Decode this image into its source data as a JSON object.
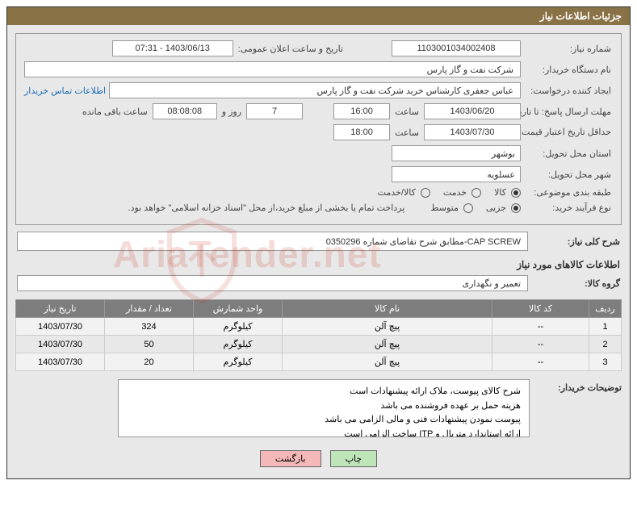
{
  "header": {
    "title": "جزئیات اطلاعات نیاز"
  },
  "labels": {
    "need_no": "شماره نیاز:",
    "announce_dt": "تاریخ و ساعت اعلان عمومی:",
    "buyer_org": "نام دستگاه خریدار:",
    "requester": "ایجاد کننده درخواست:",
    "contact_link": "اطلاعات تماس خریدار",
    "reply_deadline": "مهلت ارسال پاسخ: تا تاریخ:",
    "hour": "ساعت",
    "days_and": "روز و",
    "remaining": "ساعت باقی مانده",
    "price_valid": "حداقل تاریخ اعتبار قیمت: تا تاریخ:",
    "delivery_province": "استان محل تحویل:",
    "delivery_city": "شهر محل تحویل:",
    "category": "طبقه بندی موضوعی:",
    "purchase_type": "نوع فرآیند خرید:",
    "payment_note": "پرداخت تمام یا بخشی از مبلغ خرید،از محل \"اسناد خزانه اسلامی\" خواهد بود.",
    "overall_desc": "شرح کلی نیاز:",
    "items_title": "اطلاعات کالاهای مورد نیاز",
    "item_group": "گروه کالا:",
    "buyer_notes": "توضیحات خریدار:"
  },
  "fields": {
    "need_no": "1103001034002408",
    "announce_dt": "1403/06/13 - 07:31",
    "buyer_org": "شرکت نفت و گاز پارس",
    "requester": "عباس  جعفری کارشناس خرید  شرکت نفت و گاز پارس",
    "reply_date": "1403/06/20",
    "reply_time": "16:00",
    "days_left": "7",
    "time_left": "08:08:08",
    "price_valid_date": "1403/07/30",
    "price_valid_time": "18:00",
    "province": "بوشهر",
    "city": "عسلویه",
    "overall_desc": "CAP SCREW-مطابق شرح تقاضای شماره 0350296",
    "item_group": "تعمیر و نگهداری"
  },
  "radios": {
    "category": [
      {
        "label": "کالا",
        "checked": true
      },
      {
        "label": "خدمت",
        "checked": false
      },
      {
        "label": "کالا/خدمت",
        "checked": false
      }
    ],
    "purchase_type": [
      {
        "label": "جزیی",
        "checked": true
      },
      {
        "label": "متوسط",
        "checked": false
      }
    ]
  },
  "table": {
    "headers": [
      "ردیف",
      "کد کالا",
      "نام کالا",
      "واحد شمارش",
      "تعداد / مقدار",
      "تاریخ نیاز"
    ],
    "rows": [
      [
        "1",
        "--",
        "پیچ آلن",
        "کیلوگرم",
        "324",
        "1403/07/30"
      ],
      [
        "2",
        "--",
        "پیچ آلن",
        "کیلوگرم",
        "50",
        "1403/07/30"
      ],
      [
        "3",
        "--",
        "پیچ آلن",
        "کیلوگرم",
        "20",
        "1403/07/30"
      ]
    ]
  },
  "notes": [
    "شرح کالای پیوست، ملاک ارائه پیشنهادات است",
    "هزینه حمل بر عهده فروشنده می باشد",
    "پیوست نمودن پیشنهادات فنی و مالی الزامی می باشد",
    "ارائه استاندارد متریال و ITP ساخت الزامی است"
  ],
  "buttons": {
    "print": "چاپ",
    "back": "بازگشت"
  },
  "watermark": "AriaTender.net",
  "col_widths": [
    "40px",
    "120px",
    "auto",
    "110px",
    "110px",
    "110px"
  ]
}
